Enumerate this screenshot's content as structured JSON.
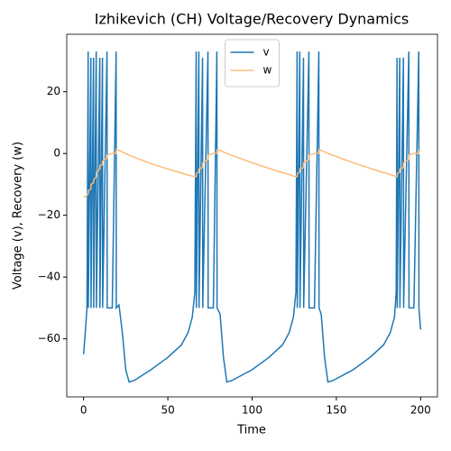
{
  "chart_data": {
    "type": "line",
    "title": "Izhikevich (CH) Voltage/Recovery Dynamics",
    "xlabel": "Time",
    "ylabel": "Voltage (v), Recovery (w)",
    "legend": "upper center",
    "xlim": [
      -10,
      210
    ],
    "ylim": [
      -78.8,
      38.6
    ],
    "xticks": [
      0,
      50,
      100,
      150,
      200
    ],
    "yticks": [
      {
        "value": -60,
        "label": "−60"
      },
      {
        "value": -40,
        "label": "−40"
      },
      {
        "value": -20,
        "label": "−20"
      },
      0,
      20
    ],
    "x": [
      0,
      1,
      2,
      2.7,
      2.8,
      4.3,
      4.4,
      5.9,
      6.0,
      7.5,
      7.6,
      9.6,
      9.7,
      11.2,
      11.3,
      13.9,
      14.0,
      17,
      19.3,
      19.4,
      21,
      23,
      25,
      27,
      30,
      40,
      50,
      58,
      62,
      64.5,
      66,
      66.8,
      66.9,
      68.4,
      68.5,
      70.6,
      70.7,
      73.8,
      73.9,
      77,
      79.1,
      79.2,
      81,
      83,
      85,
      88,
      100,
      110,
      118,
      122,
      124.5,
      126,
      126.7,
      126.8,
      128.3,
      128.4,
      130.5,
      130.6,
      133.7,
      133.8,
      137,
      139.6,
      139.7,
      141,
      143,
      145,
      148,
      160,
      170,
      178,
      182,
      184.5,
      185.5,
      186,
      186.1,
      187.6,
      187.7,
      189.8,
      189.9,
      193,
      193.1,
      196,
      198.9,
      199,
      200
    ],
    "series": [
      {
        "name": "v",
        "color": "#1f77b4",
        "values": [
          -65,
          -58,
          -50,
          33,
          -50,
          31,
          -50,
          31,
          -50,
          33,
          -50,
          31,
          -50,
          31,
          -50,
          33,
          -50,
          -50,
          33,
          -50,
          -49,
          -58,
          -70,
          -74,
          -73.5,
          -70,
          -66,
          -62,
          -58,
          -53,
          -45,
          33,
          -50,
          33,
          -50,
          31,
          -50,
          33,
          -50,
          -50,
          33,
          -50,
          -52,
          -66,
          -74,
          -73.5,
          -70,
          -66,
          -62,
          -58,
          -53,
          -45,
          33,
          -50,
          33,
          -50,
          31,
          -50,
          33,
          -50,
          -50,
          33,
          -50,
          -52,
          -66,
          -74,
          -73.5,
          -70,
          -66,
          -62,
          -58,
          -53,
          -45,
          31,
          -50,
          31,
          -50,
          31,
          -50,
          33,
          -50,
          -50,
          33,
          -50,
          -57
        ]
      },
      {
        "name": "w",
        "color": "#ffbb78",
        "values": [
          -14,
          -14,
          -13.5,
          -13,
          -12,
          -11.5,
          -10,
          -9.5,
          -8.5,
          -7.5,
          -6,
          -5,
          -4,
          -3.5,
          -2.5,
          -1.5,
          -0.5,
          0,
          0,
          1.2,
          1,
          0.5,
          0,
          -0.5,
          -1.2,
          -3.3,
          -5,
          -6.3,
          -7,
          -7.3,
          -7.5,
          -7.5,
          -6.5,
          -6,
          -5,
          -4.5,
          -3,
          -2,
          -0.5,
          0,
          0,
          1.2,
          1,
          0.5,
          0,
          -0.6,
          -3,
          -4.8,
          -6.2,
          -6.8,
          -7.3,
          -7.5,
          -7.5,
          -6.5,
          -6,
          -5,
          -4.5,
          -3,
          -2,
          -0.5,
          0,
          0,
          1.2,
          1,
          0.5,
          0,
          -0.6,
          -3,
          -4.8,
          -6.2,
          -6.8,
          -7.3,
          -7.5,
          -7.5,
          -6.5,
          -6,
          -5,
          -4.5,
          -3,
          -2,
          -0.5,
          0,
          0,
          1,
          0.8
        ]
      }
    ]
  }
}
